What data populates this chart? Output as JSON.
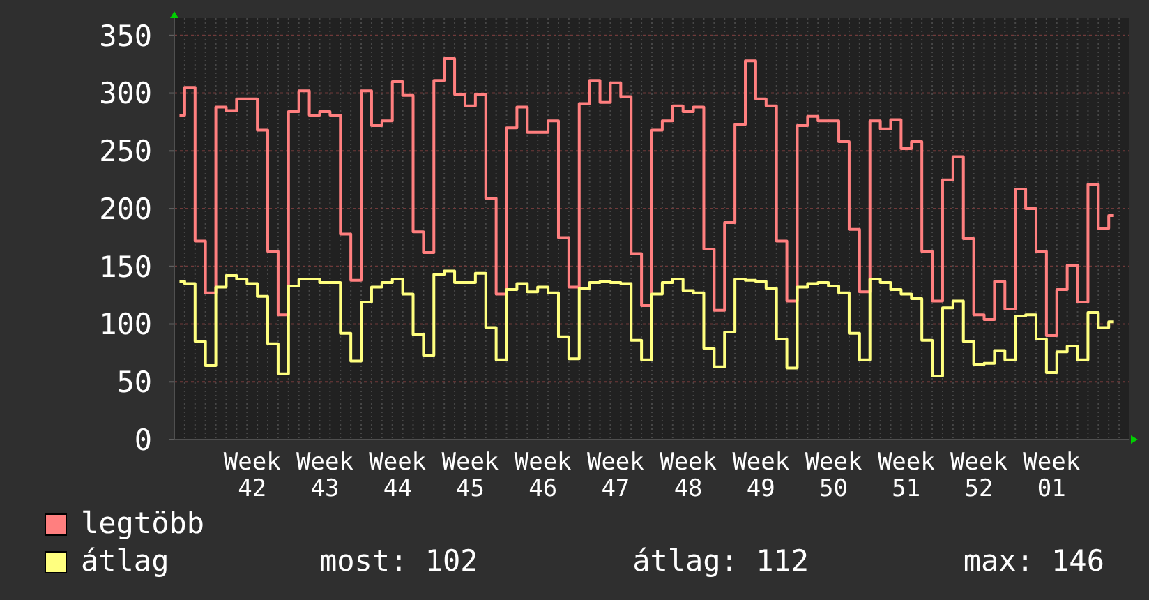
{
  "chart_data": {
    "type": "step",
    "categories": [
      null,
      null,
      null,
      null,
      null,
      null,
      null,
      "Week 42",
      null,
      null,
      null,
      null,
      null,
      null,
      "Week 43",
      null,
      null,
      null,
      null,
      null,
      null,
      "Week 44",
      null,
      null,
      null,
      null,
      null,
      null,
      "Week 45",
      null,
      null,
      null,
      null,
      null,
      null,
      "Week 46",
      null,
      null,
      null,
      null,
      null,
      null,
      "Week 47",
      null,
      null,
      null,
      null,
      null,
      null,
      "Week 48",
      null,
      null,
      null,
      null,
      null,
      null,
      "Week 49",
      null,
      null,
      null,
      null,
      null,
      null,
      "Week 50",
      null,
      null,
      null,
      null,
      null,
      null,
      "Week 51",
      null,
      null,
      null,
      null,
      null,
      null,
      "Week 52",
      null,
      null,
      null,
      null,
      null,
      null,
      "Week 01",
      null,
      null,
      null,
      null,
      null,
      null,
      null
    ],
    "series": [
      {
        "name": "legtöbb",
        "color": "#ff7f7f",
        "values": [
          281,
          305,
          172,
          127,
          288,
          285,
          295,
          295,
          268,
          163,
          108,
          284,
          302,
          281,
          284,
          281,
          178,
          138,
          302,
          272,
          276,
          310,
          298,
          180,
          162,
          311,
          330,
          299,
          289,
          299,
          209,
          126,
          270,
          288,
          266,
          266,
          276,
          175,
          132,
          291,
          311,
          292,
          309,
          297,
          161,
          116,
          268,
          276,
          289,
          284,
          288,
          165,
          112,
          188,
          273,
          328,
          295,
          289,
          172,
          120,
          272,
          280,
          276,
          276,
          258,
          182,
          128,
          276,
          269,
          277,
          252,
          258,
          163,
          120,
          225,
          245,
          174,
          108,
          104,
          137,
          113,
          217,
          200,
          163,
          90,
          130,
          151,
          119,
          221,
          183,
          194,
          null
        ]
      },
      {
        "name": "átlag",
        "color": "#ffff7f",
        "values": [
          137,
          135,
          85,
          64,
          132,
          142,
          139,
          135,
          124,
          83,
          57,
          133,
          139,
          139,
          136,
          136,
          92,
          68,
          119,
          132,
          136,
          139,
          126,
          91,
          73,
          143,
          146,
          136,
          136,
          144,
          97,
          69,
          130,
          135,
          128,
          132,
          127,
          89,
          70,
          131,
          136,
          137,
          136,
          135,
          86,
          69,
          126,
          136,
          139,
          129,
          127,
          79,
          63,
          93,
          139,
          138,
          137,
          131,
          87,
          62,
          132,
          135,
          136,
          133,
          127,
          92,
          69,
          139,
          136,
          130,
          126,
          122,
          86,
          55,
          114,
          120,
          85,
          65,
          66,
          77,
          69,
          107,
          108,
          87,
          58,
          76,
          81,
          69,
          110,
          97,
          102,
          null
        ]
      }
    ],
    "ylim": [
      0,
      365
    ],
    "yticks": [
      0,
      50,
      100,
      150,
      200,
      250,
      300,
      350
    ],
    "grid": true,
    "legend": "bottom",
    "annotations": [
      "most: 102",
      "átlag: 112",
      "max: 146"
    ]
  }
}
